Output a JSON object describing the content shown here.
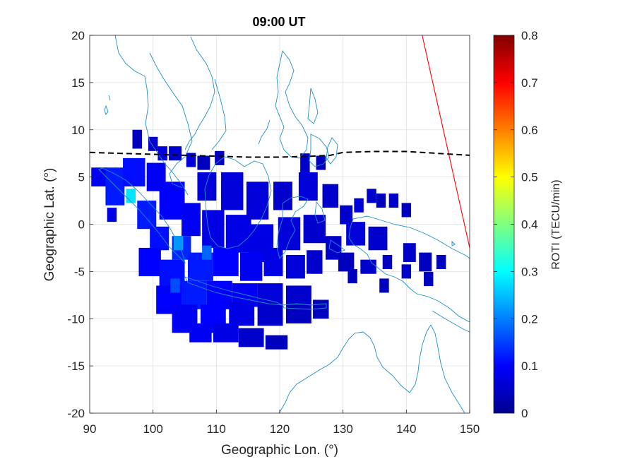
{
  "chart_data": {
    "type": "heatmap",
    "title": "09:00 UT",
    "xlabel": "Geographic Lon. (°)",
    "ylabel": "Geographic Lat. (°)",
    "xlim": [
      90,
      150
    ],
    "ylim": [
      -20,
      20
    ],
    "xticks": [
      "90",
      "100",
      "110",
      "120",
      "130",
      "140",
      "150"
    ],
    "yticks": [
      "20",
      "15",
      "10",
      "5",
      "0",
      "-5",
      "-10",
      "-15",
      "-20"
    ],
    "grid": true,
    "colorbar": {
      "label": "ROTI (TECU/min)",
      "min": 0,
      "max": 0.8,
      "colormap": "jet",
      "ticks": [
        "0",
        "0.1",
        "0.2",
        "0.3",
        "0.4",
        "0.5",
        "0.6",
        "0.7",
        "0.8"
      ]
    },
    "colors": {
      "coastline": "#1f8fc8",
      "terminator_line": "#ff0000",
      "dashed_line": "#000000"
    },
    "dashed_line": {
      "style": "dashed",
      "points": [
        [
          90,
          7.6
        ],
        [
          95,
          7.5
        ],
        [
          100,
          7.4
        ],
        [
          105,
          7.3
        ],
        [
          110,
          7.2
        ],
        [
          115,
          7.1
        ],
        [
          120,
          7.1
        ],
        [
          125,
          7.2
        ],
        [
          128,
          7.3
        ],
        [
          130,
          7.6
        ],
        [
          135,
          7.7
        ],
        [
          140,
          7.7
        ],
        [
          145,
          7.5
        ],
        [
          150,
          7.3
        ]
      ]
    },
    "red_line": {
      "points": [
        [
          142.5,
          20
        ],
        [
          150,
          -2.5
        ]
      ]
    },
    "roti_cells": [
      {
        "lon": 97.5,
        "lat": 9.0,
        "w": 1.5,
        "h": 2.0,
        "roti": 0.05
      },
      {
        "lon": 100.0,
        "lat": 8.5,
        "w": 1.5,
        "h": 1.5,
        "roti": 0.06
      },
      {
        "lon": 101.5,
        "lat": 7.5,
        "w": 1.5,
        "h": 1.5,
        "roti": 0.07
      },
      {
        "lon": 103.5,
        "lat": 7.5,
        "w": 2.0,
        "h": 1.5,
        "roti": 0.06
      },
      {
        "lon": 106.0,
        "lat": 6.8,
        "w": 1.5,
        "h": 1.5,
        "roti": 0.07
      },
      {
        "lon": 108.0,
        "lat": 6.5,
        "w": 2.0,
        "h": 1.5,
        "roti": 0.05
      },
      {
        "lon": 110.5,
        "lat": 7.0,
        "w": 1.5,
        "h": 1.5,
        "roti": 0.05
      },
      {
        "lon": 124.0,
        "lat": 6.5,
        "w": 1.5,
        "h": 2.0,
        "roti": 0.06
      },
      {
        "lon": 126.5,
        "lat": 6.5,
        "w": 1.5,
        "h": 1.5,
        "roti": 0.05
      },
      {
        "lon": 91.5,
        "lat": 5.0,
        "w": 2.5,
        "h": 2.0,
        "roti": 0.09
      },
      {
        "lon": 94.0,
        "lat": 4.0,
        "w": 3.0,
        "h": 4.0,
        "roti": 0.12
      },
      {
        "lon": 96.5,
        "lat": 3.0,
        "w": 1.5,
        "h": 1.5,
        "roti": 0.28
      },
      {
        "lon": 97.0,
        "lat": 5.5,
        "w": 3.5,
        "h": 3.0,
        "roti": 0.11
      },
      {
        "lon": 100.5,
        "lat": 5.0,
        "w": 3.0,
        "h": 3.0,
        "roti": 0.09
      },
      {
        "lon": 103.0,
        "lat": 2.5,
        "w": 4.0,
        "h": 4.0,
        "roti": 0.1
      },
      {
        "lon": 99.0,
        "lat": 1.0,
        "w": 3.0,
        "h": 3.0,
        "roti": 0.12
      },
      {
        "lon": 93.5,
        "lat": 1.0,
        "w": 1.5,
        "h": 1.5,
        "roti": 0.08
      },
      {
        "lon": 101.0,
        "lat": -1.5,
        "w": 3.0,
        "h": 2.5,
        "roti": 0.11
      },
      {
        "lon": 104.5,
        "lat": -2.5,
        "w": 3.0,
        "h": 2.5,
        "roti": 0.13
      },
      {
        "lon": 106.0,
        "lat": 0.5,
        "w": 3.0,
        "h": 3.5,
        "roti": 0.09
      },
      {
        "lon": 108.5,
        "lat": 4.0,
        "w": 3.0,
        "h": 3.0,
        "roti": 0.07
      },
      {
        "lon": 109.5,
        "lat": -0.5,
        "w": 3.5,
        "h": 4.0,
        "roti": 0.08
      },
      {
        "lon": 112.5,
        "lat": 3.5,
        "w": 3.5,
        "h": 4.0,
        "roti": 0.07
      },
      {
        "lon": 113.5,
        "lat": -1.0,
        "w": 4.0,
        "h": 4.0,
        "roti": 0.08
      },
      {
        "lon": 116.5,
        "lat": 2.5,
        "w": 3.5,
        "h": 4.0,
        "roti": 0.07
      },
      {
        "lon": 117.0,
        "lat": -2.0,
        "w": 4.0,
        "h": 4.0,
        "roti": 0.08
      },
      {
        "lon": 120.5,
        "lat": 3.0,
        "w": 3.0,
        "h": 3.0,
        "roti": 0.06
      },
      {
        "lon": 121.5,
        "lat": -1.0,
        "w": 3.5,
        "h": 3.5,
        "roti": 0.07
      },
      {
        "lon": 124.5,
        "lat": 4.0,
        "w": 3.0,
        "h": 3.0,
        "roti": 0.07
      },
      {
        "lon": 125.5,
        "lat": -0.5,
        "w": 3.5,
        "h": 3.0,
        "roti": 0.06
      },
      {
        "lon": 128.0,
        "lat": 3.0,
        "w": 2.5,
        "h": 2.5,
        "roti": 0.06
      },
      {
        "lon": 130.5,
        "lat": 1.0,
        "w": 2.0,
        "h": 2.0,
        "roti": 0.06
      },
      {
        "lon": 132.5,
        "lat": 2.0,
        "w": 1.5,
        "h": 1.5,
        "roti": 0.07
      },
      {
        "lon": 134.5,
        "lat": 3.0,
        "w": 1.5,
        "h": 1.5,
        "roti": 0.06
      },
      {
        "lon": 136.0,
        "lat": 2.5,
        "w": 1.5,
        "h": 1.5,
        "roti": 0.05
      },
      {
        "lon": 138.0,
        "lat": 2.5,
        "w": 1.5,
        "h": 1.5,
        "roti": 0.06
      },
      {
        "lon": 140.0,
        "lat": 1.5,
        "w": 1.5,
        "h": 1.5,
        "roti": 0.05
      },
      {
        "lon": 132.0,
        "lat": -1.0,
        "w": 3.0,
        "h": 2.5,
        "roti": 0.07
      },
      {
        "lon": 135.5,
        "lat": -1.5,
        "w": 3.0,
        "h": 2.5,
        "roti": 0.06
      },
      {
        "lon": 128.5,
        "lat": -2.5,
        "w": 2.5,
        "h": 2.5,
        "roti": 0.06
      },
      {
        "lon": 130.5,
        "lat": -4.0,
        "w": 2.5,
        "h": 2.0,
        "roti": 0.05
      },
      {
        "lon": 134.0,
        "lat": -4.5,
        "w": 2.5,
        "h": 1.5,
        "roti": 0.06
      },
      {
        "lon": 137.0,
        "lat": -4.0,
        "w": 1.5,
        "h": 1.5,
        "roti": 0.05
      },
      {
        "lon": 140.5,
        "lat": -3.0,
        "w": 2.0,
        "h": 2.0,
        "roti": 0.06
      },
      {
        "lon": 143.0,
        "lat": -4.0,
        "w": 2.0,
        "h": 2.0,
        "roti": 0.05
      },
      {
        "lon": 145.5,
        "lat": -4.0,
        "w": 1.5,
        "h": 1.5,
        "roti": 0.05
      },
      {
        "lon": 140.0,
        "lat": -5.0,
        "w": 1.5,
        "h": 1.5,
        "roti": 0.06
      },
      {
        "lon": 143.5,
        "lat": -5.8,
        "w": 1.5,
        "h": 1.5,
        "roti": 0.05
      },
      {
        "lon": 136.5,
        "lat": -6.5,
        "w": 1.5,
        "h": 1.5,
        "roti": 0.05
      },
      {
        "lon": 131.5,
        "lat": -5.5,
        "w": 1.5,
        "h": 1.5,
        "roti": 0.05
      },
      {
        "lon": 99.5,
        "lat": -4.0,
        "w": 3.5,
        "h": 3.0,
        "roti": 0.1
      },
      {
        "lon": 103.0,
        "lat": -5.5,
        "w": 4.0,
        "h": 3.5,
        "roti": 0.11
      },
      {
        "lon": 107.5,
        "lat": -4.5,
        "w": 4.0,
        "h": 3.0,
        "roti": 0.12
      },
      {
        "lon": 111.5,
        "lat": -4.0,
        "w": 4.0,
        "h": 3.0,
        "roti": 0.1
      },
      {
        "lon": 115.5,
        "lat": -4.5,
        "w": 3.5,
        "h": 3.0,
        "roti": 0.09
      },
      {
        "lon": 119.0,
        "lat": -4.0,
        "w": 3.0,
        "h": 3.0,
        "roti": 0.08
      },
      {
        "lon": 122.5,
        "lat": -4.5,
        "w": 3.0,
        "h": 2.5,
        "roti": 0.07
      },
      {
        "lon": 125.5,
        "lat": -4.0,
        "w": 2.5,
        "h": 2.5,
        "roti": 0.06
      },
      {
        "lon": 102.5,
        "lat": -8.0,
        "w": 4.0,
        "h": 3.0,
        "roti": 0.1
      },
      {
        "lon": 106.5,
        "lat": -7.5,
        "w": 4.0,
        "h": 3.0,
        "roti": 0.12
      },
      {
        "lon": 110.5,
        "lat": -7.5,
        "w": 4.0,
        "h": 3.0,
        "roti": 0.1
      },
      {
        "lon": 114.5,
        "lat": -7.5,
        "w": 4.0,
        "h": 2.5,
        "roti": 0.09
      },
      {
        "lon": 118.5,
        "lat": -7.5,
        "w": 4.0,
        "h": 2.5,
        "roti": 0.07
      },
      {
        "lon": 123.0,
        "lat": -7.5,
        "w": 4.0,
        "h": 2.0,
        "roti": 0.06
      },
      {
        "lon": 105.0,
        "lat": -10.0,
        "w": 4.0,
        "h": 3.0,
        "roti": 0.09
      },
      {
        "lon": 109.5,
        "lat": -10.0,
        "w": 4.0,
        "h": 3.0,
        "roti": 0.1
      },
      {
        "lon": 114.0,
        "lat": -9.5,
        "w": 4.0,
        "h": 2.5,
        "roti": 0.08
      },
      {
        "lon": 118.5,
        "lat": -9.5,
        "w": 4.0,
        "h": 2.5,
        "roti": 0.06
      },
      {
        "lon": 123.0,
        "lat": -9.5,
        "w": 4.0,
        "h": 2.0,
        "roti": 0.05
      },
      {
        "lon": 126.5,
        "lat": -9.0,
        "w": 2.5,
        "h": 2.0,
        "roti": 0.05
      },
      {
        "lon": 107.5,
        "lat": -11.5,
        "w": 3.5,
        "h": 2.0,
        "roti": 0.09
      },
      {
        "lon": 111.5,
        "lat": -11.5,
        "w": 4.0,
        "h": 2.0,
        "roti": 0.08
      },
      {
        "lon": 115.5,
        "lat": -12.0,
        "w": 4.0,
        "h": 2.0,
        "roti": 0.06
      },
      {
        "lon": 119.5,
        "lat": -12.5,
        "w": 3.5,
        "h": 1.5,
        "roti": 0.05
      },
      {
        "lon": 104.0,
        "lat": -2.0,
        "w": 1.5,
        "h": 1.5,
        "roti": 0.22
      },
      {
        "lon": 108.5,
        "lat": -3.0,
        "w": 1.5,
        "h": 1.5,
        "roti": 0.18
      },
      {
        "lon": 103.5,
        "lat": -6.5,
        "w": 1.5,
        "h": 1.5,
        "roti": 0.16
      }
    ]
  }
}
